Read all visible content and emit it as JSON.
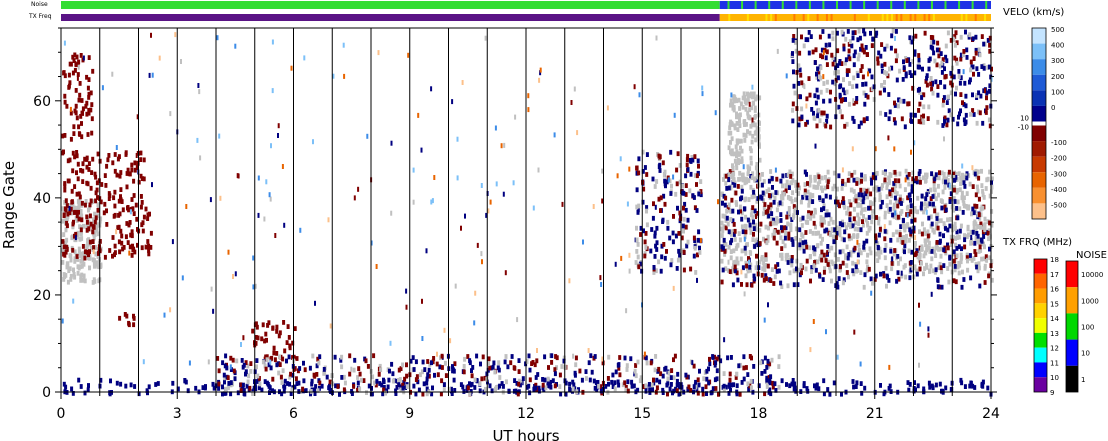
{
  "header": {
    "noise_label": "Noise",
    "txfreq_label": "TX Freq"
  },
  "chart_data": {
    "type": "heatmap",
    "xlabel": "UT hours",
    "ylabel": "Range Gate",
    "xlim": [
      0,
      24
    ],
    "ylim": [
      0,
      75
    ],
    "x_ticks": [
      0,
      3,
      6,
      9,
      12,
      15,
      18,
      21,
      24
    ],
    "y_ticks": [
      0,
      20,
      40,
      60
    ],
    "vertical_time_lines": [
      1,
      2,
      3,
      4,
      5,
      6,
      7,
      8,
      9,
      10,
      11,
      12,
      13,
      14,
      15,
      16,
      17,
      18,
      19,
      20,
      21,
      22,
      23
    ],
    "grid": false,
    "colors": {
      "ground_scatter": "#c0c0c0",
      "negative_velocity": "#800000",
      "positive_velocity": "#000080"
    },
    "echo_regions": [
      {
        "kind": "ground_scatter",
        "x": [
          0,
          1.0
        ],
        "y": [
          23,
          40
        ]
      },
      {
        "kind": "negative",
        "x": [
          0,
          2.3
        ],
        "y": [
          28,
          50
        ]
      },
      {
        "kind": "negative",
        "x": [
          0,
          0.8
        ],
        "y": [
          52,
          70
        ]
      },
      {
        "kind": "negative",
        "x": [
          1.4,
          2.0
        ],
        "y": [
          14,
          17
        ]
      },
      {
        "kind": "negative",
        "x": [
          4.9,
          6.1
        ],
        "y": [
          7,
          15
        ]
      },
      {
        "kind": "mixed",
        "x": [
          14.8,
          16.5
        ],
        "y": [
          25,
          50
        ]
      },
      {
        "kind": "ground_scatter",
        "x": [
          17.0,
          24.0
        ],
        "y": [
          25,
          46
        ]
      },
      {
        "kind": "mixed",
        "x": [
          17.0,
          24.0
        ],
        "y": [
          22,
          46
        ]
      },
      {
        "kind": "ground_scatter",
        "x": [
          17.2,
          18.0
        ],
        "y": [
          44,
          62
        ]
      },
      {
        "kind": "mixed",
        "x": [
          18.8,
          24.0
        ],
        "y": [
          55,
          75
        ]
      },
      {
        "kind": "positive",
        "x": [
          0,
          24
        ],
        "y": [
          0,
          3
        ]
      },
      {
        "kind": "mixed",
        "x": [
          4,
          18.5
        ],
        "y": [
          0,
          8
        ]
      }
    ],
    "noise_bar": {
      "segments": [
        {
          "from": 0,
          "to": 17.0,
          "level": "100-1000"
        },
        {
          "from": 17.0,
          "to": 24,
          "level": "10-100"
        }
      ]
    },
    "txfreq_bar": {
      "segments": [
        {
          "from": 0,
          "to": 17.0,
          "freq_mhz": "10"
        },
        {
          "from": 17.0,
          "to": 24,
          "freq_mhz": "14-16"
        }
      ]
    },
    "velocity_colorbar": {
      "title": "VELO (km/s)",
      "ticks": [
        "500",
        "400",
        "300",
        "200",
        "100",
        "0",
        "10",
        "-10",
        "-100",
        "-200",
        "-300",
        "-400",
        "-500"
      ],
      "colors_top_to_bottom": [
        "#c4e4ff",
        "#7cc0f8",
        "#3c8ce8",
        "#1e5ad6",
        "#0a32b4",
        "#00008c",
        "#800000",
        "#a01a00",
        "#c83a00",
        "#e86400",
        "#f89030",
        "#fcc08a"
      ]
    },
    "txfreq_colorbar": {
      "title": "TX FRQ (MHz)",
      "ticks": [
        "18",
        "17",
        "16",
        "15",
        "14",
        "13",
        "12",
        "11",
        "10",
        "9"
      ],
      "colors_top_to_bottom": [
        "#ff0000",
        "#ff6400",
        "#ff9c00",
        "#ffd200",
        "#f0ff00",
        "#00e000",
        "#00ffff",
        "#0000ff",
        "#6a00a0"
      ]
    },
    "noise_colorbar": {
      "title": "NOISE",
      "ticks": [
        "10000",
        "1000",
        "100",
        "10",
        "1"
      ],
      "colors_top_to_bottom": [
        "#ff0000",
        "#ffa000",
        "#00d800",
        "#0000ff",
        "#000000"
      ]
    }
  }
}
